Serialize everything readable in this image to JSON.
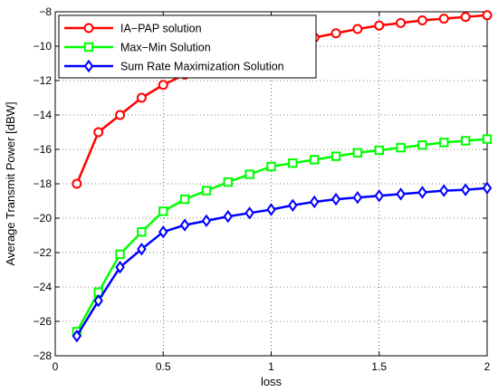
{
  "chart_data": {
    "type": "line",
    "xlabel": "loss",
    "ylabel": "Average Transmit Power [dBW]",
    "xlim": [
      0,
      2
    ],
    "ylim": [
      -28,
      -8
    ],
    "xticks": [
      0,
      0.5,
      1,
      1.5,
      2
    ],
    "xtick_labels": [
      "0",
      "0.5",
      "1",
      "1.5",
      "2"
    ],
    "yticks": [
      -28,
      -26,
      -24,
      -22,
      -20,
      -18,
      -16,
      -14,
      -12,
      -10,
      -8
    ],
    "ytick_labels": [
      "-28",
      "-26",
      "-24",
      "-22",
      "-20",
      "-18",
      "-16",
      "-14",
      "-12",
      "-10",
      "-8"
    ],
    "grid": true,
    "legend_position": "top-left",
    "x": [
      0.1,
      0.2,
      0.3,
      0.4,
      0.5,
      0.6,
      0.7,
      0.8,
      0.9,
      1.0,
      1.1,
      1.2,
      1.3,
      1.4,
      1.5,
      1.6,
      1.7,
      1.8,
      1.9,
      2.0
    ],
    "series": [
      {
        "name": "IA−PAP solution",
        "color": "#ff0000",
        "marker": "circle",
        "values": [
          -18.0,
          -15.0,
          -14.0,
          -13.0,
          -12.25,
          -11.65,
          -11.1,
          -10.7,
          -10.3,
          -10.0,
          -9.75,
          -9.5,
          -9.25,
          -9.0,
          -8.8,
          -8.65,
          -8.5,
          -8.4,
          -8.3,
          -8.2
        ]
      },
      {
        "name": "Max−Min Solution",
        "color": "#00ff00",
        "marker": "square",
        "values": [
          -26.6,
          -24.3,
          -22.1,
          -20.8,
          -19.6,
          -18.9,
          -18.4,
          -17.9,
          -17.45,
          -17.0,
          -16.8,
          -16.6,
          -16.4,
          -16.2,
          -16.05,
          -15.9,
          -15.75,
          -15.6,
          -15.5,
          -15.4
        ]
      },
      {
        "name": "Sum Rate Maximization Solution",
        "color": "#0000ff",
        "marker": "diamond",
        "values": [
          -26.85,
          -24.8,
          -22.85,
          -21.8,
          -20.8,
          -20.4,
          -20.15,
          -19.9,
          -19.7,
          -19.5,
          -19.25,
          -19.05,
          -18.9,
          -18.8,
          -18.7,
          -18.6,
          -18.5,
          -18.4,
          -18.35,
          -18.25
        ]
      }
    ]
  }
}
